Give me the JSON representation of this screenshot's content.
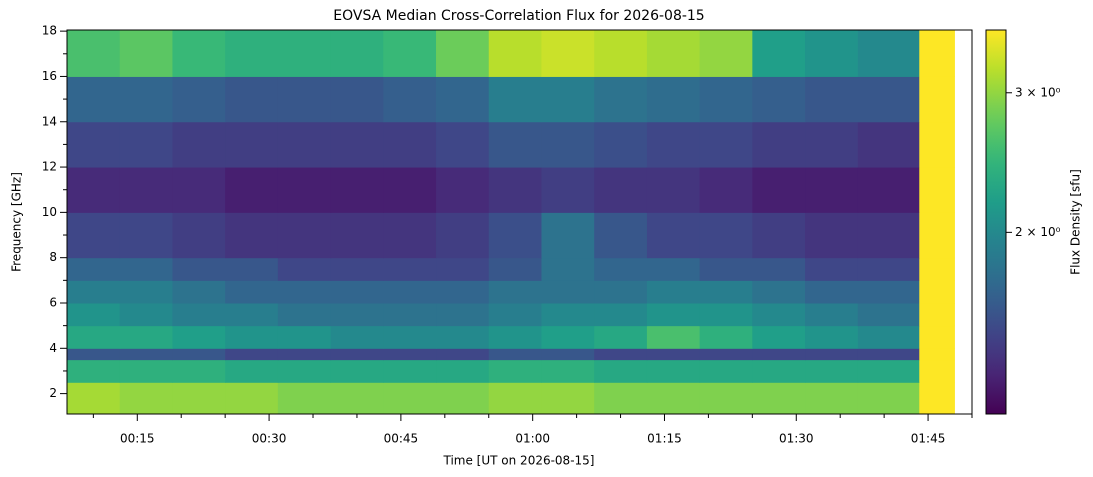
{
  "chart_data": {
    "type": "heatmap",
    "title": "EOVSA Median Cross-Correlation Flux for 2026-08-15",
    "xlabel": "Time [UT on 2026-08-15]",
    "ylabel": "Frequency [GHz]",
    "colorbar_label": "Flux Density [sfu]",
    "colormap": "viridis",
    "color_scale": "log",
    "xlim": [
      "00:07",
      "01:50"
    ],
    "xticks": [
      "00:15",
      "00:30",
      "00:45",
      "01:00",
      "01:15",
      "01:30",
      "01:45"
    ],
    "x_minor_ticks": [
      "00:10",
      "00:20",
      "00:25",
      "00:35",
      "00:40",
      "00:50",
      "00:55",
      "01:05",
      "01:10",
      "01:20",
      "01:25",
      "01:35",
      "01:40",
      "01:50"
    ],
    "ylim": [
      1.1,
      18.05
    ],
    "yticks": [
      2,
      4,
      6,
      8,
      10,
      12,
      14,
      16,
      18
    ],
    "y_minor_ticks": [
      3,
      5,
      7,
      9,
      11,
      13,
      15,
      17
    ],
    "clim": [
      1.18,
      3.6
    ],
    "cticks": [
      {
        "value": 2,
        "label": "2 × 10⁰"
      },
      {
        "value": 3,
        "label": "3 × 10⁰"
      }
    ],
    "x_bins": [
      "00:07",
      "00:13",
      "00:19",
      "00:25",
      "00:31",
      "00:37",
      "00:43",
      "00:49",
      "00:55",
      "01:01",
      "01:07",
      "01:13",
      "01:19",
      "01:25",
      "01:31",
      "01:37",
      "01:44",
      "01:48"
    ],
    "y_bins": [
      1.1,
      2.5,
      3.5,
      4.0,
      5,
      6,
      7,
      8,
      10,
      12,
      14,
      16,
      18.05
    ],
    "z": [
      [
        3.1,
        3.0,
        3.0,
        3.0,
        2.9,
        2.9,
        2.9,
        2.9,
        3.0,
        3.0,
        2.9,
        2.9,
        2.9,
        2.9,
        2.9,
        2.9,
        3.6
      ],
      [
        2.4,
        2.4,
        2.4,
        2.3,
        2.3,
        2.3,
        2.3,
        2.3,
        2.4,
        2.4,
        2.3,
        2.3,
        2.3,
        2.3,
        2.3,
        2.3,
        3.6
      ],
      [
        1.6,
        1.6,
        1.6,
        1.5,
        1.5,
        1.5,
        1.5,
        1.5,
        1.6,
        1.6,
        1.5,
        1.5,
        1.5,
        1.5,
        1.5,
        1.5,
        3.6
      ],
      [
        2.3,
        2.3,
        2.2,
        2.1,
        2.1,
        2.0,
        2.0,
        2.0,
        2.1,
        2.2,
        2.3,
        2.6,
        2.4,
        2.2,
        2.1,
        2.0,
        3.6
      ],
      [
        2.1,
        2.0,
        1.9,
        1.9,
        1.8,
        1.8,
        1.8,
        1.8,
        1.9,
        2.0,
        2.0,
        2.1,
        2.1,
        2.0,
        1.9,
        1.8,
        3.6
      ],
      [
        1.9,
        1.9,
        1.8,
        1.7,
        1.7,
        1.7,
        1.7,
        1.7,
        1.8,
        1.8,
        1.8,
        1.9,
        1.9,
        1.8,
        1.7,
        1.7,
        3.6
      ],
      [
        1.7,
        1.7,
        1.6,
        1.6,
        1.5,
        1.5,
        1.5,
        1.5,
        1.6,
        1.8,
        1.7,
        1.7,
        1.6,
        1.6,
        1.5,
        1.5,
        3.6
      ],
      [
        1.5,
        1.5,
        1.45,
        1.4,
        1.4,
        1.4,
        1.4,
        1.45,
        1.55,
        1.8,
        1.6,
        1.5,
        1.5,
        1.45,
        1.4,
        1.4,
        3.6
      ],
      [
        1.35,
        1.35,
        1.35,
        1.3,
        1.3,
        1.3,
        1.3,
        1.35,
        1.4,
        1.45,
        1.4,
        1.4,
        1.35,
        1.3,
        1.3,
        1.3,
        3.6
      ],
      [
        1.5,
        1.5,
        1.45,
        1.45,
        1.45,
        1.45,
        1.45,
        1.5,
        1.6,
        1.6,
        1.55,
        1.5,
        1.5,
        1.45,
        1.45,
        1.4,
        3.6
      ],
      [
        1.7,
        1.7,
        1.65,
        1.6,
        1.6,
        1.6,
        1.65,
        1.7,
        1.9,
        1.9,
        1.8,
        1.75,
        1.7,
        1.65,
        1.6,
        1.6,
        3.6
      ],
      [
        2.6,
        2.7,
        2.5,
        2.4,
        2.4,
        2.4,
        2.5,
        2.8,
        3.2,
        3.3,
        3.2,
        3.1,
        3.0,
        2.2,
        2.1,
        2.0,
        3.6
      ]
    ]
  }
}
